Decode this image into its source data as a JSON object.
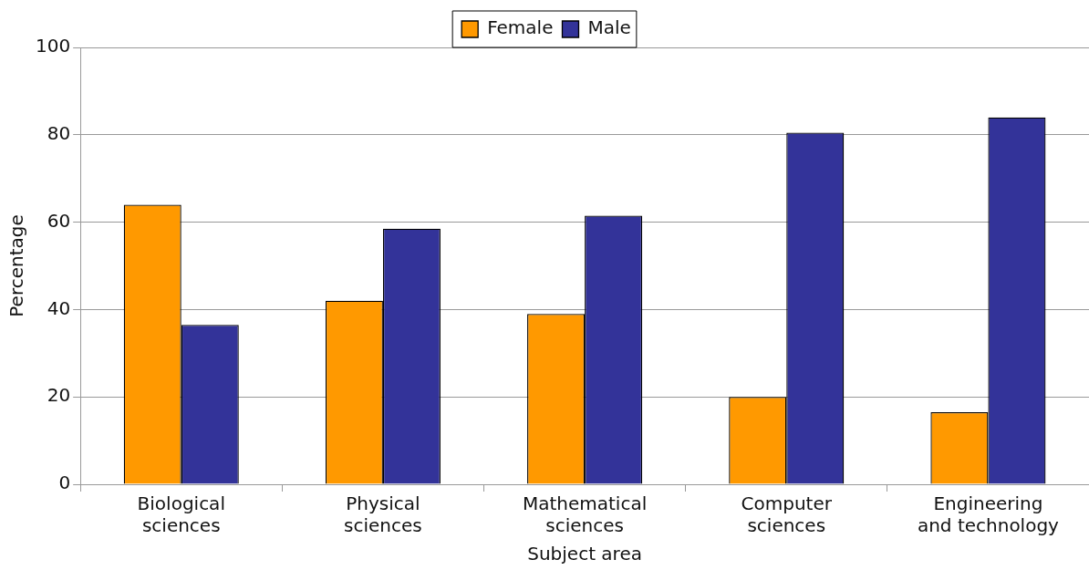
{
  "chart_data": {
    "type": "bar",
    "xlabel": "Subject area",
    "ylabel": "Percentage",
    "categories": [
      "Biological sciences",
      "Physical sciences",
      "Mathematical sciences",
      "Computer sciences",
      "Engineering and technology"
    ],
    "series": [
      {
        "name": "Female",
        "color": "#ff9900",
        "values": [
          64,
          42,
          39,
          20,
          16.5
        ]
      },
      {
        "name": "Male",
        "color": "#333399",
        "values": [
          36.5,
          58.5,
          61.5,
          80.5,
          84
        ]
      }
    ],
    "ylim": [
      0,
      100
    ],
    "yticks": [
      0,
      20,
      40,
      60,
      80,
      100
    ],
    "grid": "y",
    "legend": "top"
  }
}
